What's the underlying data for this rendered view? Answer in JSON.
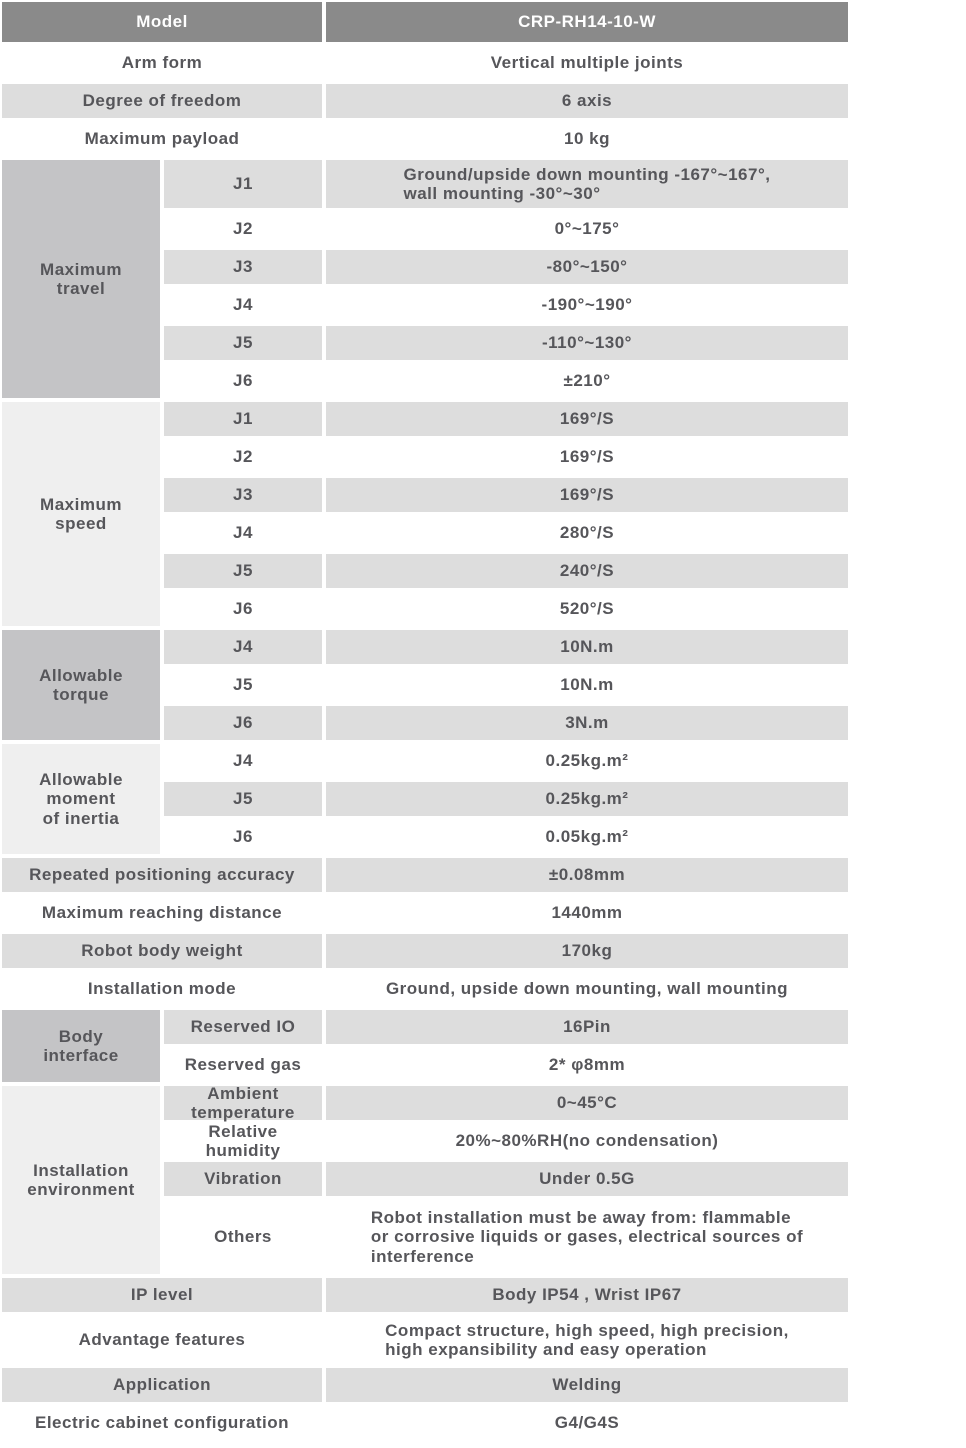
{
  "colors": {
    "header_bg": "#8a8a8a",
    "header_text": "#ffffff",
    "row_gray": "#dddddd",
    "row_white": "#ffffff",
    "section_dark": "#c4c4c6",
    "section_light": "#efefef",
    "text": "#56565a"
  },
  "header": {
    "label": "Model",
    "value": "CRP-RH14-10-W"
  },
  "rows": {
    "arm_form": {
      "label": "Arm form",
      "value": "Vertical multiple joints"
    },
    "degree_of_freedom": {
      "label": "Degree of freedom",
      "value": "6 axis"
    },
    "maximum_payload": {
      "label": "Maximum payload",
      "value": "10 kg"
    },
    "repeated_positioning_accuracy": {
      "label": "Repeated positioning accuracy",
      "value": "±0.08mm"
    },
    "maximum_reaching_distance": {
      "label": "Maximum reaching distance",
      "value": "1440mm"
    },
    "robot_body_weight": {
      "label": "Robot body weight",
      "value": "170kg"
    },
    "installation_mode": {
      "label": "Installation mode",
      "value": "Ground, upside down mounting, wall mounting"
    },
    "ip_level": {
      "label": "IP level",
      "value": "Body IP54 , Wrist IP67"
    },
    "advantage_features": {
      "label": "Advantage features",
      "value": "Compact structure, high speed, high precision,\nhigh expansibility and easy operation"
    },
    "application": {
      "label": "Application",
      "value": "Welding"
    },
    "electric_cabinet_configuration": {
      "label": "Electric cabinet configuration",
      "value": "G4/G4S"
    }
  },
  "groups": {
    "maximum_travel": {
      "label": "Maximum\ntravel",
      "rows": [
        {
          "sub": "J1",
          "value": "Ground/upside down mounting -167°~167°,\nwall mounting -30°~30°"
        },
        {
          "sub": "J2",
          "value": "0°~175°"
        },
        {
          "sub": "J3",
          "value": "-80°~150°"
        },
        {
          "sub": "J4",
          "value": "-190°~190°"
        },
        {
          "sub": "J5",
          "value": "-110°~130°"
        },
        {
          "sub": "J6",
          "value": "±210°"
        }
      ]
    },
    "maximum_speed": {
      "label": "Maximum\nspeed",
      "rows": [
        {
          "sub": "J1",
          "value": "169°/S"
        },
        {
          "sub": "J2",
          "value": "169°/S"
        },
        {
          "sub": "J3",
          "value": "169°/S"
        },
        {
          "sub": "J4",
          "value": "280°/S"
        },
        {
          "sub": "J5",
          "value": "240°/S"
        },
        {
          "sub": "J6",
          "value": "520°/S"
        }
      ]
    },
    "allowable_torque": {
      "label": "Allowable\ntorque",
      "rows": [
        {
          "sub": "J4",
          "value": "10N.m"
        },
        {
          "sub": "J5",
          "value": "10N.m"
        },
        {
          "sub": "J6",
          "value": "3N.m"
        }
      ]
    },
    "allowable_moment_of_inertia": {
      "label": "Allowable\nmoment\nof inertia",
      "rows": [
        {
          "sub": "J4",
          "value": "0.25kg.m²"
        },
        {
          "sub": "J5",
          "value": "0.25kg.m²"
        },
        {
          "sub": "J6",
          "value": "0.05kg.m²"
        }
      ]
    },
    "body_interface": {
      "label": "Body\ninterface",
      "rows": [
        {
          "sub": "Reserved IO",
          "value": "16Pin"
        },
        {
          "sub": "Reserved gas",
          "value": "2* φ8mm"
        }
      ]
    },
    "installation_environment": {
      "label": "Installation\nenvironment",
      "rows": [
        {
          "sub": "Ambient\ntemperature",
          "value": "0~45°C"
        },
        {
          "sub": "Relative\nhumidity",
          "value": "20%~80%RH(no condensation)"
        },
        {
          "sub": "Vibration",
          "value": "Under 0.5G"
        },
        {
          "sub": "Others",
          "value": "Robot installation must be away from: flammable\nor corrosive liquids or gases, electrical sources of\ninterference"
        }
      ]
    }
  }
}
